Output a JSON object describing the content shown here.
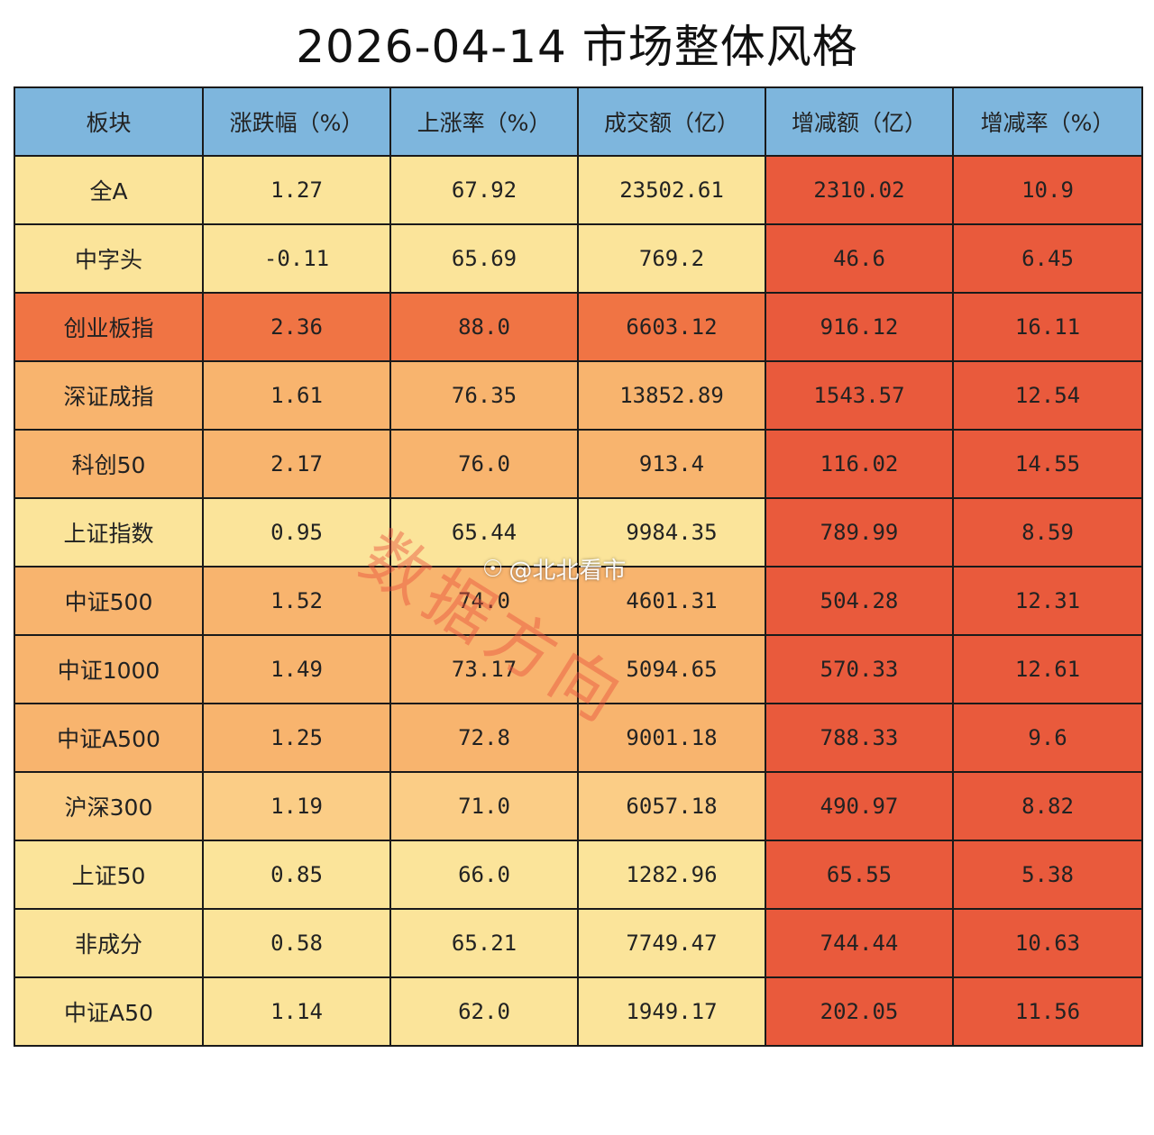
{
  "title": "2026-04-14 市场整体风格",
  "watermark_text": "数据方向",
  "credit": {
    "logo": "weibo-icon",
    "handle": "@北北看市"
  },
  "colors": {
    "header": "#7eb6dd",
    "light": "#fbe49a",
    "mid": "#fbcd86",
    "amber": "#f8b46e",
    "orange": "#f07444",
    "red": "#e95a3c"
  },
  "chart_data": {
    "type": "table",
    "title": "2026-04-14 市场整体风格",
    "columns": [
      "板块",
      "涨跌幅（%）",
      "上涨率（%）",
      "成交额（亿）",
      "增减额（亿）",
      "增减率（%）"
    ],
    "rows": [
      {
        "cells": [
          "全A",
          "1.27",
          "67.92",
          "23502.61",
          "2310.02",
          "10.9"
        ],
        "tone": "light"
      },
      {
        "cells": [
          "中字头",
          "-0.11",
          "65.69",
          "769.2",
          "46.6",
          "6.45"
        ],
        "tone": "light"
      },
      {
        "cells": [
          "创业板指",
          "2.36",
          "88.0",
          "6603.12",
          "916.12",
          "16.11"
        ],
        "tone": "orange"
      },
      {
        "cells": [
          "深证成指",
          "1.61",
          "76.35",
          "13852.89",
          "1543.57",
          "12.54"
        ],
        "tone": "amber"
      },
      {
        "cells": [
          "科创50",
          "2.17",
          "76.0",
          "913.4",
          "116.02",
          "14.55"
        ],
        "tone": "amber"
      },
      {
        "cells": [
          "上证指数",
          "0.95",
          "65.44",
          "9984.35",
          "789.99",
          "8.59"
        ],
        "tone": "light"
      },
      {
        "cells": [
          "中证500",
          "1.52",
          "74.0",
          "4601.31",
          "504.28",
          "12.31"
        ],
        "tone": "amber"
      },
      {
        "cells": [
          "中证1000",
          "1.49",
          "73.17",
          "5094.65",
          "570.33",
          "12.61"
        ],
        "tone": "amber"
      },
      {
        "cells": [
          "中证A500",
          "1.25",
          "72.8",
          "9001.18",
          "788.33",
          "9.6"
        ],
        "tone": "amber"
      },
      {
        "cells": [
          "沪深300",
          "1.19",
          "71.0",
          "6057.18",
          "490.97",
          "8.82"
        ],
        "tone": "mid"
      },
      {
        "cells": [
          "上证50",
          "0.85",
          "66.0",
          "1282.96",
          "65.55",
          "5.38"
        ],
        "tone": "light"
      },
      {
        "cells": [
          "非成分",
          "0.58",
          "65.21",
          "7749.47",
          "744.44",
          "10.63"
        ],
        "tone": "light"
      },
      {
        "cells": [
          "中证A50",
          "1.14",
          "62.0",
          "1949.17",
          "202.05",
          "11.56"
        ],
        "tone": "light"
      }
    ]
  }
}
